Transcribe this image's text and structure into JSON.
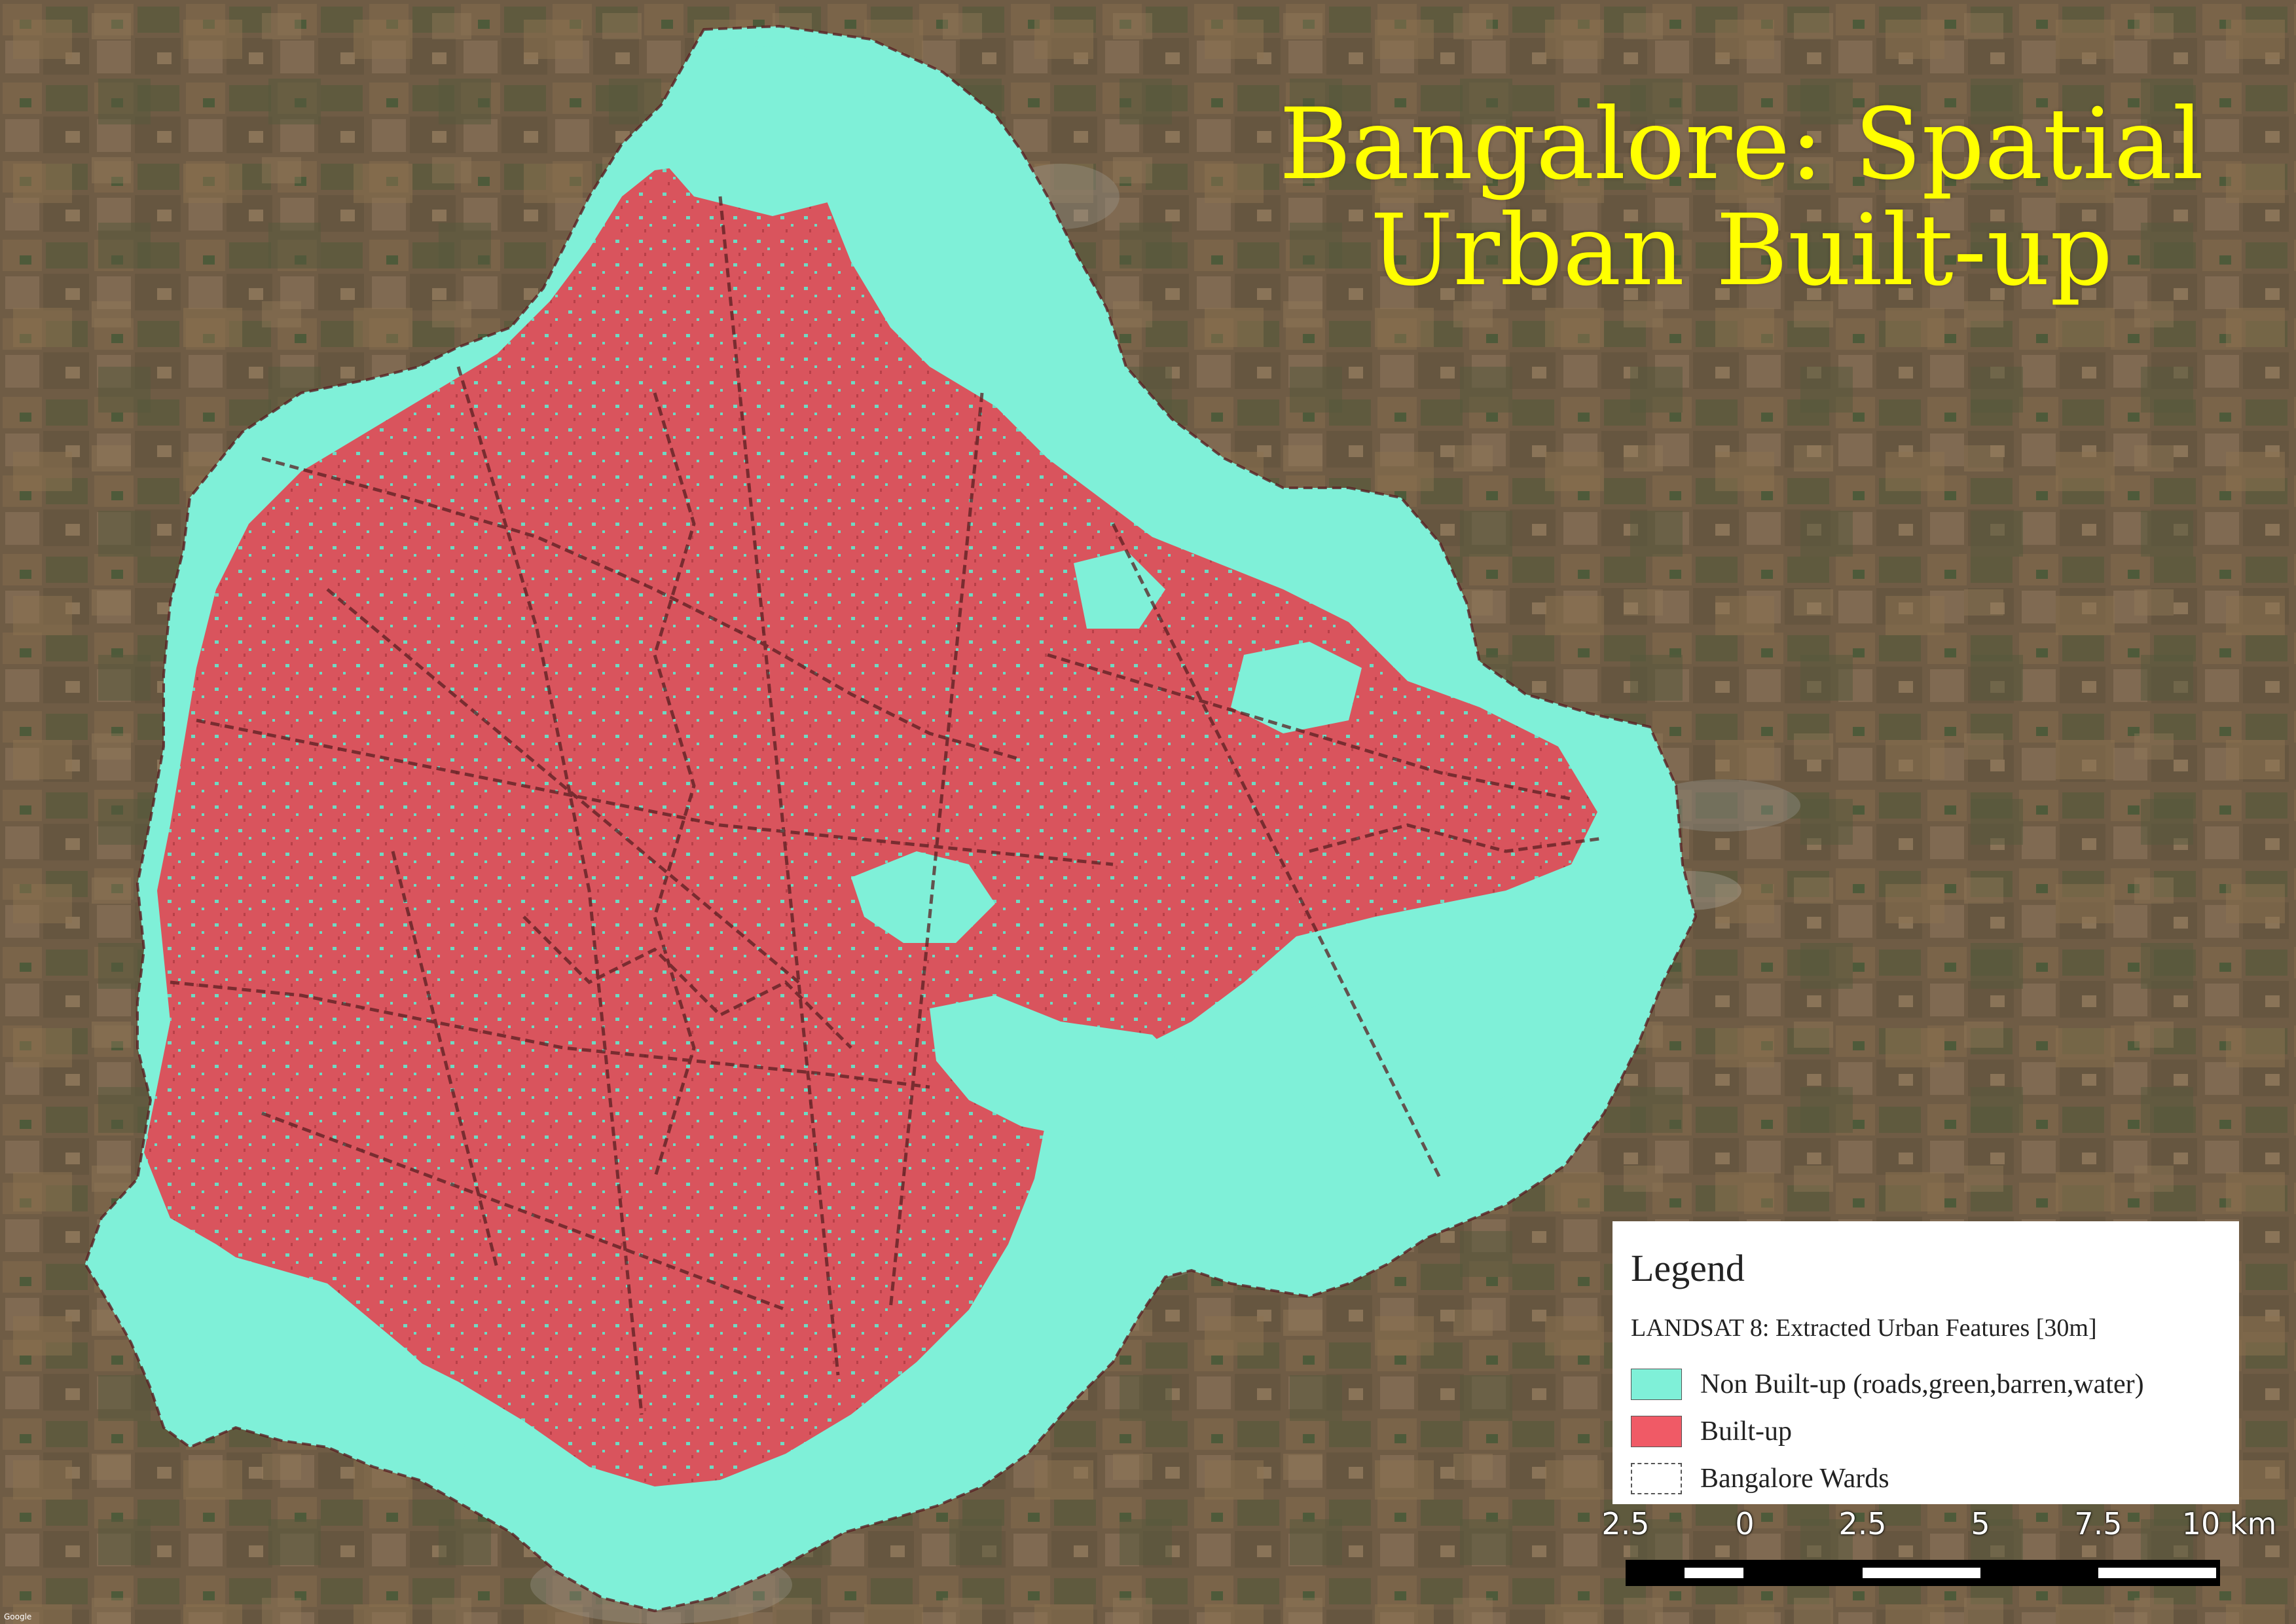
{
  "title": {
    "line1": "Bangalore: Spatial",
    "line2": "Urban Built-up"
  },
  "colors": {
    "title": "#ffff00",
    "non_built_up": "#7ff0d8",
    "built_up": "#f05a66",
    "ward_boundary": "#5a1f22",
    "basemap": "#6b5a44"
  },
  "legend": {
    "title": "Legend",
    "subtitle": "LANDSAT 8: Extracted Urban Features [30m]",
    "items": [
      {
        "label": "Non Built-up (roads,green,barren,water)",
        "color": "#7ff0d8",
        "style": "fill"
      },
      {
        "label": "Built-up",
        "color": "#f05a66",
        "style": "fill"
      },
      {
        "label": "Bangalore Wards",
        "color": "#555555",
        "style": "dashed-outline"
      }
    ]
  },
  "scale_bar": {
    "labels": [
      "2.5",
      "0",
      "2.5",
      "5",
      "7.5",
      "10 km"
    ]
  },
  "credit": "Google"
}
